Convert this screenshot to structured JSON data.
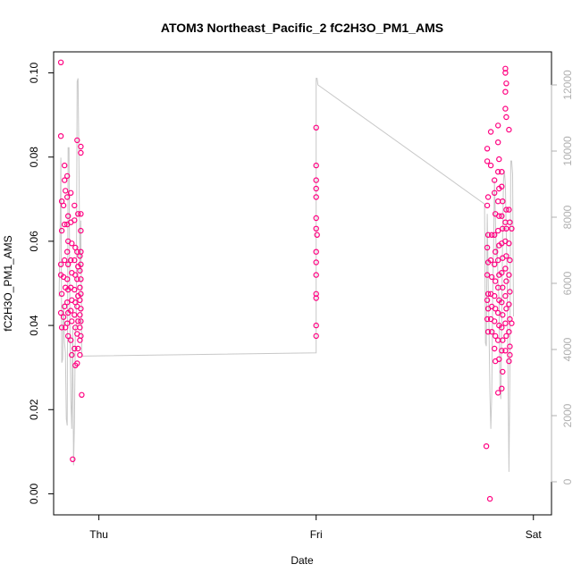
{
  "chart_data": {
    "type": "scatter",
    "title": "ATOM3 Northeast_Pacific_2 fC2H3O_PM1_AMS",
    "xlabel": "Date",
    "ylabel": "fC2H3O_PM1_AMS",
    "x_ticks": [
      "Thu",
      "Fri",
      "Sat"
    ],
    "x_tick_hours": [
      24,
      48,
      72
    ],
    "xlim_hours": [
      19,
      74
    ],
    "ylim": [
      -0.005,
      0.105
    ],
    "y_ticks": [
      "0.00",
      "0.02",
      "0.04",
      "0.06",
      "0.08",
      "0.10"
    ],
    "y2lim": [
      -1000,
      13000
    ],
    "y2_ticks": [
      "0",
      "2000",
      "4000",
      "6000",
      "8000",
      "10000",
      "12000"
    ],
    "grid": false,
    "point_color": "#ff0080",
    "altitude_line_color": "#c8c8c8",
    "right_axis_color": "#b0b0b0",
    "series": [
      {
        "points": [
          [
            19.8,
            0.1025
          ],
          [
            19.8,
            0.085
          ],
          [
            19.9,
            0.0695
          ],
          [
            19.9,
            0.0625
          ],
          [
            19.8,
            0.0545
          ],
          [
            19.8,
            0.052
          ],
          [
            19.9,
            0.0475
          ],
          [
            19.8,
            0.043
          ],
          [
            19.9,
            0.0395
          ],
          [
            20.2,
            0.078
          ],
          [
            20.2,
            0.0745
          ],
          [
            20.3,
            0.072
          ],
          [
            20.1,
            0.0685
          ],
          [
            20.2,
            0.064
          ],
          [
            20.2,
            0.0555
          ],
          [
            20.1,
            0.0515
          ],
          [
            20.3,
            0.049
          ],
          [
            20.2,
            0.0445
          ],
          [
            20.1,
            0.042
          ],
          [
            20.3,
            0.0395
          ],
          [
            20.5,
            0.0755
          ],
          [
            20.5,
            0.0705
          ],
          [
            20.6,
            0.066
          ],
          [
            20.5,
            0.064
          ],
          [
            20.6,
            0.06
          ],
          [
            20.5,
            0.0575
          ],
          [
            20.6,
            0.0545
          ],
          [
            20.5,
            0.051
          ],
          [
            20.6,
            0.0485
          ],
          [
            20.5,
            0.0455
          ],
          [
            20.6,
            0.043
          ],
          [
            20.5,
            0.0405
          ],
          [
            20.6,
            0.0375
          ],
          [
            20.9,
            0.0715
          ],
          [
            20.9,
            0.0645
          ],
          [
            21.0,
            0.0595
          ],
          [
            20.9,
            0.0555
          ],
          [
            21.0,
            0.0525
          ],
          [
            20.9,
            0.049
          ],
          [
            21.0,
            0.046
          ],
          [
            20.9,
            0.0435
          ],
          [
            21.0,
            0.041
          ],
          [
            20.9,
            0.0365
          ],
          [
            21.0,
            0.033
          ],
          [
            21.3,
            0.0685
          ],
          [
            21.3,
            0.065
          ],
          [
            21.4,
            0.0585
          ],
          [
            21.3,
            0.0555
          ],
          [
            21.4,
            0.052
          ],
          [
            21.3,
            0.0485
          ],
          [
            21.4,
            0.0455
          ],
          [
            21.3,
            0.0425
          ],
          [
            21.4,
            0.0395
          ],
          [
            21.3,
            0.0345
          ],
          [
            21.4,
            0.0305
          ],
          [
            21.6,
            0.084
          ],
          [
            21.7,
            0.0665
          ],
          [
            21.6,
            0.0575
          ],
          [
            21.7,
            0.054
          ],
          [
            21.6,
            0.051
          ],
          [
            21.7,
            0.047
          ],
          [
            21.6,
            0.0445
          ],
          [
            21.7,
            0.041
          ],
          [
            21.6,
            0.038
          ],
          [
            21.7,
            0.0345
          ],
          [
            21.6,
            0.031
          ],
          [
            21.9,
            0.0565
          ],
          [
            21.9,
            0.053
          ],
          [
            21.9,
            0.049
          ],
          [
            21.9,
            0.046
          ],
          [
            21.9,
            0.0425
          ],
          [
            21.9,
            0.0395
          ],
          [
            21.9,
            0.0365
          ],
          [
            21.9,
            0.033
          ],
          [
            22.0,
            0.0825
          ],
          [
            22.0,
            0.081
          ],
          [
            22.0,
            0.0665
          ],
          [
            22.0,
            0.0625
          ],
          [
            22.0,
            0.0575
          ],
          [
            22.0,
            0.0545
          ],
          [
            22.0,
            0.051
          ],
          [
            22.0,
            0.0475
          ],
          [
            22.0,
            0.044
          ],
          [
            22.0,
            0.041
          ],
          [
            22.0,
            0.0375
          ],
          [
            22.1,
            0.0235
          ],
          [
            21.1,
            0.0082
          ],
          [
            48.0,
            0.087
          ],
          [
            48.0,
            0.078
          ],
          [
            48.0,
            0.0745
          ],
          [
            48.0,
            0.0725
          ],
          [
            48.0,
            0.0705
          ],
          [
            48.0,
            0.0655
          ],
          [
            48.0,
            0.063
          ],
          [
            48.1,
            0.0615
          ],
          [
            48.0,
            0.0575
          ],
          [
            48.0,
            0.055
          ],
          [
            48.0,
            0.052
          ],
          [
            48.0,
            0.0475
          ],
          [
            48.0,
            0.0465
          ],
          [
            48.0,
            0.04
          ],
          [
            48.0,
            0.0375
          ],
          [
            66.8,
            0.0113
          ],
          [
            67.2,
            -0.0012
          ],
          [
            66.9,
            0.082
          ],
          [
            66.9,
            0.079
          ],
          [
            67.0,
            0.0705
          ],
          [
            66.9,
            0.0685
          ],
          [
            67.0,
            0.0615
          ],
          [
            66.9,
            0.0585
          ],
          [
            67.0,
            0.055
          ],
          [
            66.9,
            0.052
          ],
          [
            67.0,
            0.0475
          ],
          [
            66.9,
            0.046
          ],
          [
            67.0,
            0.044
          ],
          [
            66.9,
            0.0415
          ],
          [
            67.0,
            0.0385
          ],
          [
            67.3,
            0.086
          ],
          [
            67.3,
            0.078
          ],
          [
            67.4,
            0.0615
          ],
          [
            67.3,
            0.0555
          ],
          [
            67.4,
            0.0515
          ],
          [
            67.3,
            0.0475
          ],
          [
            67.4,
            0.0445
          ],
          [
            67.3,
            0.0415
          ],
          [
            67.4,
            0.0385
          ],
          [
            67.7,
            0.0745
          ],
          [
            67.7,
            0.0715
          ],
          [
            67.8,
            0.0665
          ],
          [
            67.7,
            0.0615
          ],
          [
            67.8,
            0.0575
          ],
          [
            67.7,
            0.0545
          ],
          [
            67.8,
            0.0505
          ],
          [
            67.7,
            0.047
          ],
          [
            67.8,
            0.044
          ],
          [
            67.7,
            0.041
          ],
          [
            67.8,
            0.0375
          ],
          [
            67.7,
            0.0345
          ],
          [
            67.8,
            0.0315
          ],
          [
            68.1,
            0.0875
          ],
          [
            68.1,
            0.0835
          ],
          [
            68.2,
            0.0795
          ],
          [
            68.1,
            0.0765
          ],
          [
            68.2,
            0.0725
          ],
          [
            68.1,
            0.0695
          ],
          [
            68.2,
            0.066
          ],
          [
            68.1,
            0.0625
          ],
          [
            68.2,
            0.059
          ],
          [
            68.1,
            0.0555
          ],
          [
            68.2,
            0.052
          ],
          [
            68.1,
            0.049
          ],
          [
            68.2,
            0.046
          ],
          [
            68.1,
            0.043
          ],
          [
            68.2,
            0.04
          ],
          [
            68.1,
            0.0365
          ],
          [
            68.2,
            0.032
          ],
          [
            68.1,
            0.024
          ],
          [
            68.5,
            0.0765
          ],
          [
            68.5,
            0.073
          ],
          [
            68.6,
            0.0695
          ],
          [
            68.5,
            0.066
          ],
          [
            68.6,
            0.063
          ],
          [
            68.5,
            0.0595
          ],
          [
            68.6,
            0.056
          ],
          [
            68.5,
            0.0525
          ],
          [
            68.6,
            0.049
          ],
          [
            68.5,
            0.0455
          ],
          [
            68.6,
            0.0425
          ],
          [
            68.5,
            0.0395
          ],
          [
            68.6,
            0.0365
          ],
          [
            68.5,
            0.034
          ],
          [
            68.6,
            0.029
          ],
          [
            68.5,
            0.025
          ],
          [
            68.9,
            0.101
          ],
          [
            68.9,
            0.1
          ],
          [
            69.0,
            0.0975
          ],
          [
            68.9,
            0.0955
          ],
          [
            69.0,
            0.0895
          ],
          [
            68.9,
            0.0915
          ],
          [
            69.0,
            0.0675
          ],
          [
            68.9,
            0.0645
          ],
          [
            69.0,
            0.063
          ],
          [
            68.9,
            0.06
          ],
          [
            69.0,
            0.0565
          ],
          [
            68.9,
            0.0535
          ],
          [
            69.0,
            0.0505
          ],
          [
            68.9,
            0.047
          ],
          [
            69.0,
            0.044
          ],
          [
            68.9,
            0.0405
          ],
          [
            69.0,
            0.0375
          ],
          [
            68.9,
            0.034
          ],
          [
            69.3,
            0.0865
          ],
          [
            69.3,
            0.0675
          ],
          [
            69.4,
            0.0645
          ],
          [
            69.3,
            0.0595
          ],
          [
            69.4,
            0.0555
          ],
          [
            69.3,
            0.052
          ],
          [
            69.4,
            0.048
          ],
          [
            69.3,
            0.045
          ],
          [
            69.4,
            0.0415
          ],
          [
            69.3,
            0.0385
          ],
          [
            69.4,
            0.035
          ],
          [
            69.3,
            0.0315
          ],
          [
            69.4,
            0.033
          ],
          [
            69.6,
            0.063
          ],
          [
            69.6,
            0.0405
          ]
        ]
      }
    ],
    "altitude_series": {
      "y2_label": "",
      "points": [
        [
          19.6,
          5600
        ],
        [
          19.7,
          7200
        ],
        [
          19.8,
          9800
        ],
        [
          19.9,
          3600
        ],
        [
          20.0,
          3700
        ],
        [
          20.1,
          5400
        ],
        [
          20.2,
          4200
        ],
        [
          20.3,
          3900
        ],
        [
          20.4,
          1900
        ],
        [
          20.5,
          1700
        ],
        [
          20.6,
          10100
        ],
        [
          20.7,
          10100
        ],
        [
          20.8,
          4800
        ],
        [
          20.9,
          2500
        ],
        [
          21.0,
          1600
        ],
        [
          21.1,
          4700
        ],
        [
          21.2,
          500
        ],
        [
          21.3,
          1800
        ],
        [
          21.4,
          4600
        ],
        [
          21.5,
          4700
        ],
        [
          21.6,
          12100
        ],
        [
          21.7,
          12200
        ],
        [
          21.8,
          9400
        ],
        [
          21.9,
          6300
        ],
        [
          22.0,
          7900
        ],
        [
          22.1,
          3800
        ],
        [
          48.0,
          3900
        ],
        [
          48.0,
          12200
        ],
        [
          48.1,
          12200
        ],
        [
          48.2,
          12000
        ],
        [
          66.6,
          8400
        ],
        [
          66.7,
          4200
        ],
        [
          66.8,
          4100
        ],
        [
          66.9,
          8100
        ],
        [
          67.0,
          6200
        ],
        [
          67.1,
          4600
        ],
        [
          67.2,
          2700
        ],
        [
          67.3,
          1600
        ],
        [
          67.4,
          2700
        ],
        [
          67.5,
          5600
        ],
        [
          67.6,
          7100
        ],
        [
          67.7,
          9100
        ],
        [
          67.8,
          8000
        ],
        [
          67.9,
          6800
        ],
        [
          68.0,
          7200
        ],
        [
          68.1,
          6000
        ],
        [
          68.2,
          5500
        ],
        [
          68.3,
          2900
        ],
        [
          68.4,
          2500
        ],
        [
          68.5,
          5000
        ],
        [
          68.6,
          7400
        ],
        [
          68.7,
          9100
        ],
        [
          68.8,
          9400
        ],
        [
          68.9,
          9000
        ],
        [
          69.0,
          7500
        ],
        [
          69.1,
          6100
        ],
        [
          69.2,
          3200
        ],
        [
          69.3,
          300
        ],
        [
          69.4,
          3200
        ],
        [
          69.5,
          9700
        ],
        [
          69.6,
          9700
        ],
        [
          69.7,
          9300
        ],
        [
          69.8,
          5000
        ]
      ]
    }
  }
}
